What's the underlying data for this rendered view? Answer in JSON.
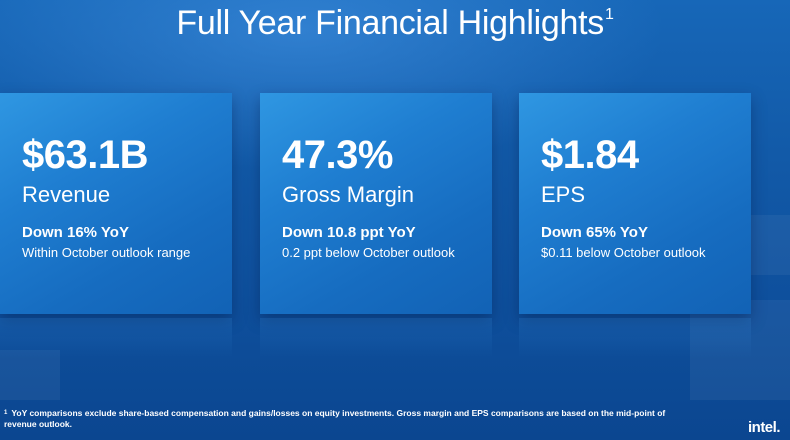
{
  "title": "Full Year Financial Highlights",
  "title_footnote_marker": "1",
  "cards": [
    {
      "value": "$63.1B",
      "metric": "Revenue",
      "change": "Down 16% YoY",
      "note": "Within October outlook range"
    },
    {
      "value": "47.3%",
      "metric": "Gross Margin",
      "change": "Down 10.8 ppt YoY",
      "note": "0.2 ppt below October outlook"
    },
    {
      "value": "$1.84",
      "metric": "EPS",
      "change": "Down 65% YoY",
      "note": "$0.11 below October outlook"
    }
  ],
  "footnote": {
    "marker": "1",
    "text": "YoY comparisons exclude share-based compensation and gains/losses on equity investments. Gross margin and EPS comparisons are based on the mid-point of revenue outlook."
  },
  "logo_text": "intel.",
  "colors": {
    "background": "#125aa8",
    "card": "#1f7ed1",
    "text": "#ffffff"
  }
}
